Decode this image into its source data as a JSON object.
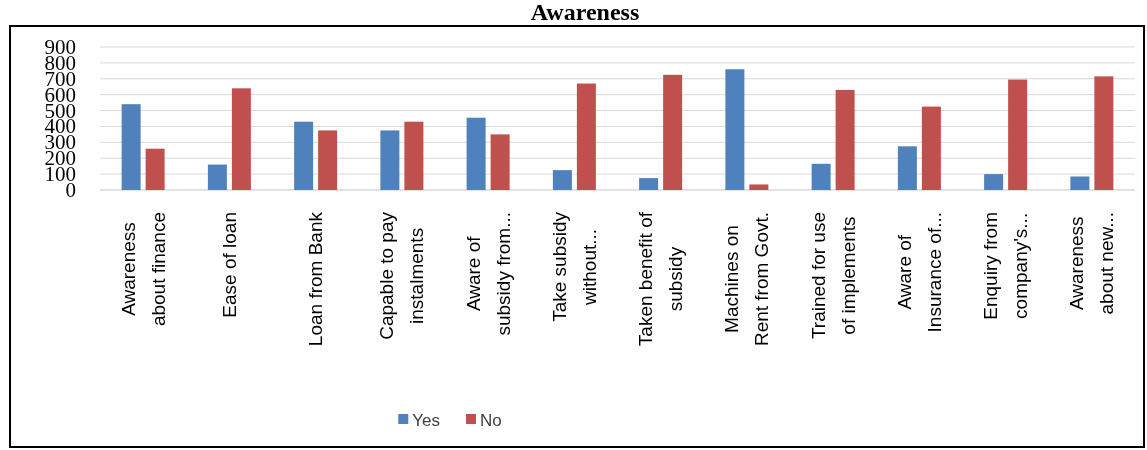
{
  "chart_data": {
    "type": "bar",
    "title": "Awareness",
    "categories": [
      "Awareness\nabout finance",
      "Ease of loan",
      "Loan from Bank",
      "Capable to pay\ninstalments",
      "Aware of\nsubsidy from...",
      "Take subsidy\nwithout...",
      "Taken benefit of\nsubsidy",
      "Machines on\nRent from Govt.",
      "Trained for use\nof implements",
      "Aware of\nInsurance of...",
      "Enquiry from\ncompany's...",
      "Awareness\nabout new..."
    ],
    "series": [
      {
        "name": "Yes",
        "color": "#4f81bd",
        "values": [
          540,
          160,
          430,
          375,
          455,
          125,
          75,
          760,
          165,
          275,
          100,
          85
        ]
      },
      {
        "name": "No",
        "color": "#c0504d",
        "values": [
          260,
          640,
          375,
          430,
          350,
          670,
          725,
          35,
          630,
          525,
          695,
          715
        ]
      }
    ],
    "ylim": [
      0,
      900
    ],
    "yticks": [
      0,
      100,
      200,
      300,
      400,
      500,
      600,
      700,
      800,
      900
    ],
    "grid": "y",
    "legend": "bottom"
  }
}
